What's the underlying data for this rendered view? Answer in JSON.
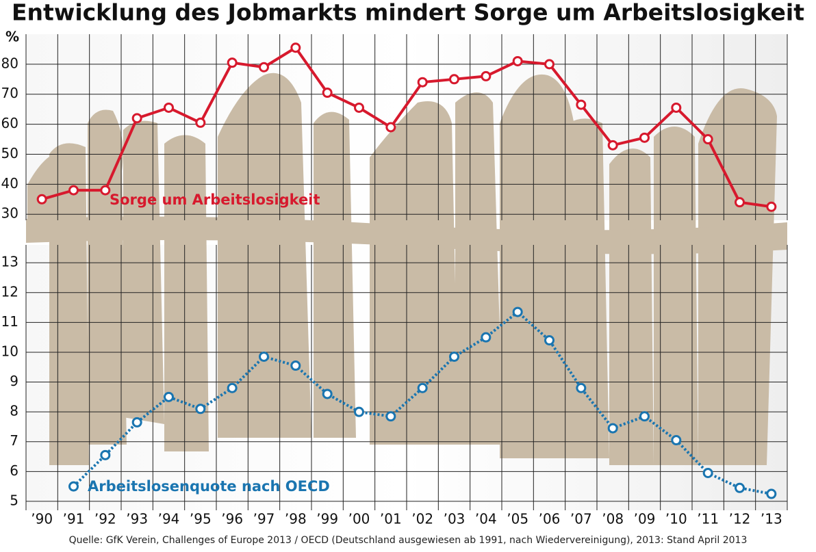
{
  "chart_data": [
    {
      "type": "line",
      "title": "Entwicklung des Jobmarkts mindert Sorge um Arbeitslosigkeit",
      "y_unit": "%",
      "ylim": [
        28,
        90
      ],
      "yticks": [
        30,
        40,
        50,
        60,
        70,
        80
      ],
      "grid": true,
      "series": [
        {
          "name": "Sorge um Arbeitslosigkeit",
          "color": "#d7192d",
          "line_style": "solid",
          "values": [
            35,
            38,
            38,
            62,
            65.5,
            60.5,
            80.5,
            79,
            85.5,
            70.5,
            65.5,
            59,
            74,
            75,
            76,
            81,
            80,
            66.5,
            53,
            55.5,
            65.5,
            55,
            34,
            32.5
          ]
        }
      ]
    },
    {
      "type": "line",
      "note": "Quelle: GfK Verein, Challenges of Europe 2013 / OECD (Deutschland ausgewiesen ab 1991, nach Wiedervereinigung), 2013: Stand April 2013",
      "categories": [
        "’90",
        "’91",
        "’92",
        "’93",
        "’94",
        "’95",
        "’96",
        "’97",
        "’98",
        "’99",
        "’00",
        "’01",
        "’02",
        "’03",
        "’04",
        "’05",
        "’06",
        "’07",
        "’08",
        "’09",
        "’10",
        "’11",
        "’12",
        "’13"
      ],
      "ylim": [
        4.7,
        13.6
      ],
      "yticks": [
        5,
        6,
        7,
        8,
        9,
        10,
        11,
        12,
        13
      ],
      "grid": true,
      "series": [
        {
          "name": "Arbeitslosenquote nach OECD",
          "color": "#1a75b0",
          "line_style": "dotted",
          "values": [
            null,
            5.5,
            6.55,
            7.65,
            8.5,
            8.1,
            8.8,
            9.85,
            9.55,
            8.6,
            8.0,
            7.85,
            8.8,
            9.85,
            10.5,
            11.35,
            10.4,
            8.8,
            7.45,
            7.85,
            7.05,
            5.95,
            5.45,
            5.25
          ]
        }
      ]
    }
  ]
}
